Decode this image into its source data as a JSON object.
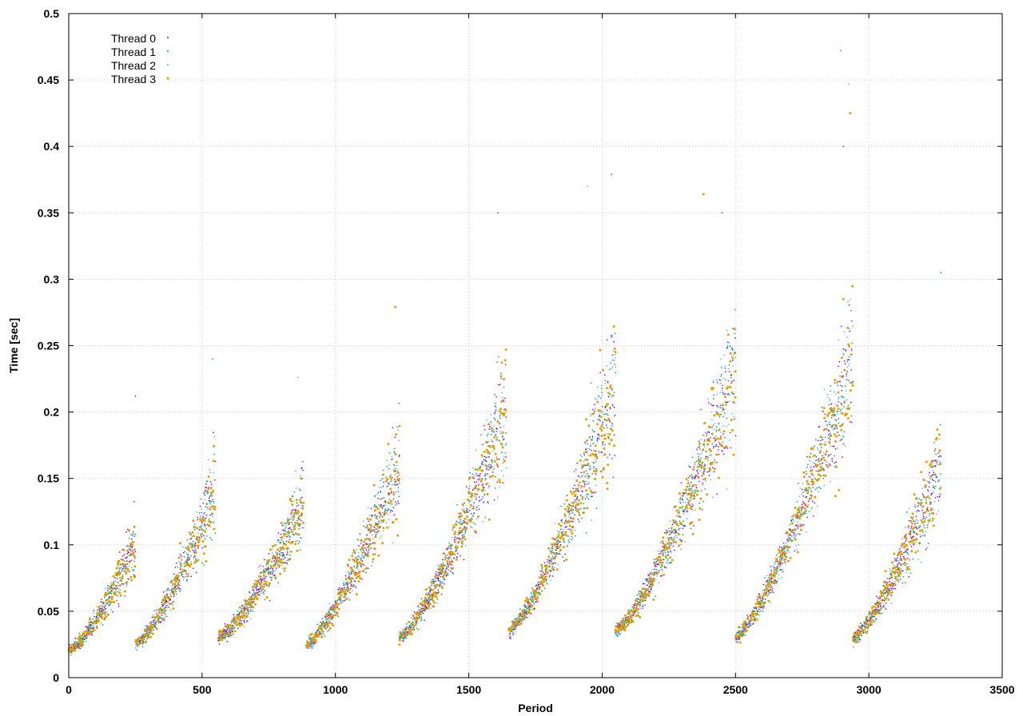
{
  "chart_data": {
    "type": "scatter",
    "xlabel": "Period",
    "ylabel": "Time [sec]",
    "xlim": [
      0,
      3500
    ],
    "ylim": [
      0,
      0.5
    ],
    "xticks": [
      "0",
      "500",
      "1000",
      "1500",
      "2000",
      "2500",
      "3000",
      "3500"
    ],
    "yticks": [
      "0",
      "0.05",
      "0.1",
      "0.15",
      "0.2",
      "0.25",
      "0.3",
      "0.35",
      "0.4",
      "0.45",
      "0.5"
    ],
    "grid": true,
    "legend_position": "top-left",
    "cycles": [
      {
        "x_start": 0,
        "x_end": 250,
        "y_start": 0.02,
        "y_end": 0.1
      },
      {
        "x_start": 250,
        "x_end": 550,
        "y_start": 0.025,
        "y_end": 0.14
      },
      {
        "x_start": 560,
        "x_end": 880,
        "y_start": 0.03,
        "y_end": 0.13
      },
      {
        "x_start": 890,
        "x_end": 1240,
        "y_start": 0.025,
        "y_end": 0.16
      },
      {
        "x_start": 1240,
        "x_end": 1640,
        "y_start": 0.03,
        "y_end": 0.2
      },
      {
        "x_start": 1650,
        "x_end": 2050,
        "y_start": 0.035,
        "y_end": 0.22
      },
      {
        "x_start": 2050,
        "x_end": 2500,
        "y_start": 0.035,
        "y_end": 0.23
      },
      {
        "x_start": 2500,
        "x_end": 2940,
        "y_start": 0.03,
        "y_end": 0.24
      },
      {
        "x_start": 2940,
        "x_end": 3270,
        "y_start": 0.03,
        "y_end": 0.16
      }
    ],
    "peaks": [
      {
        "x": 250,
        "y": 0.212
      },
      {
        "x": 540,
        "y": 0.24
      },
      {
        "x": 860,
        "y": 0.226
      },
      {
        "x": 1225,
        "y": 0.279
      },
      {
        "x": 1610,
        "y": 0.35
      },
      {
        "x": 2035,
        "y": 0.379
      },
      {
        "x": 1945,
        "y": 0.37
      },
      {
        "x": 2380,
        "y": 0.364
      },
      {
        "x": 2450,
        "y": 0.35
      },
      {
        "x": 2895,
        "y": 0.472
      },
      {
        "x": 2925,
        "y": 0.447
      },
      {
        "x": 2930,
        "y": 0.425
      },
      {
        "x": 2905,
        "y": 0.4
      },
      {
        "x": 3270,
        "y": 0.305
      }
    ],
    "series": [
      {
        "name": "Thread 0",
        "color": "#9400d3"
      },
      {
        "name": "Thread 1",
        "color": "#009e73"
      },
      {
        "name": "Thread 2",
        "color": "#56b4e9"
      },
      {
        "name": "Thread 3",
        "color": "#e69f00"
      }
    ]
  }
}
